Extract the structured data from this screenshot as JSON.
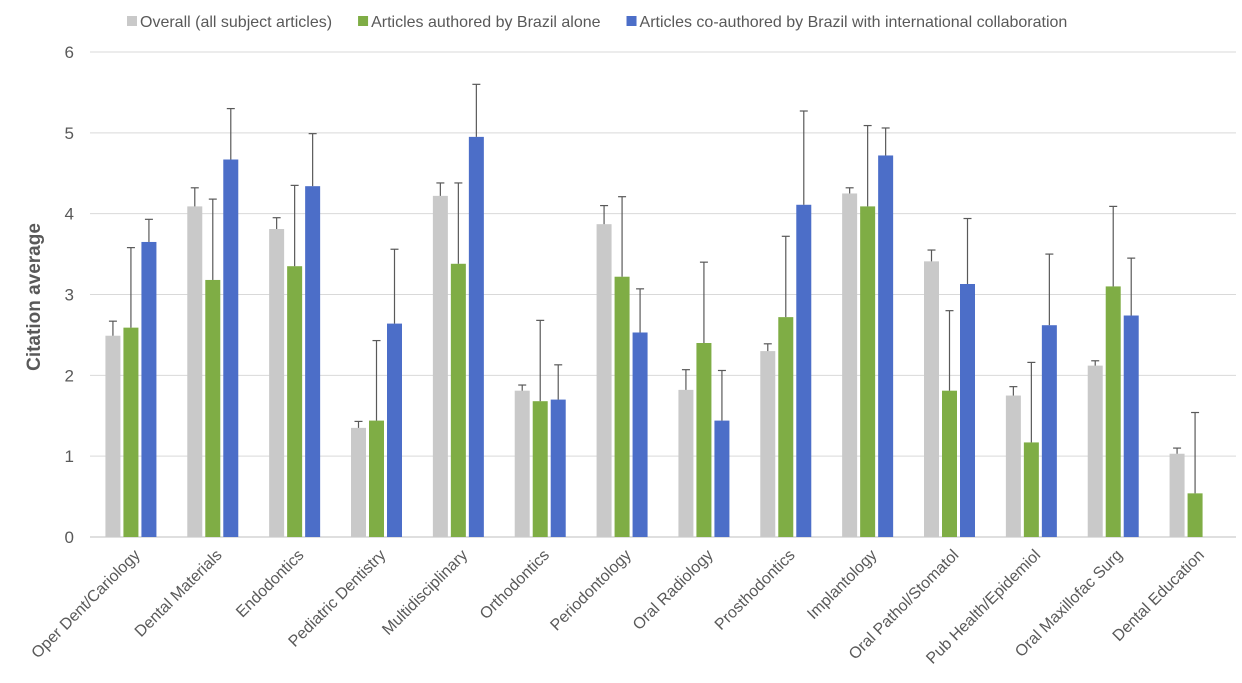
{
  "chart_data": {
    "type": "bar",
    "title": "",
    "xlabel": "",
    "ylabel": "Citation average",
    "ylim": [
      0,
      6
    ],
    "yticks": [
      "0",
      "1",
      "2",
      "3",
      "4",
      "5",
      "6"
    ],
    "grid": true,
    "legend_position": "top",
    "error_bars": true,
    "categories": [
      "Oper Dent/Cariology",
      "Dental Materials",
      "Endodontics",
      "Pediatric Dentistry",
      "Multidisciplinary",
      "Orthodontics",
      "Periodontology",
      "Oral Radiology",
      "Prosthodontics",
      "Implantology",
      "Oral Pathol/Stomatol",
      "Pub Health/Epidemiol",
      "Oral Maxillofac Surg",
      "Dental Education"
    ],
    "series": [
      {
        "name": "Overall (all subject articles)",
        "color": "#c9c9c9",
        "values": [
          2.49,
          4.09,
          3.81,
          1.35,
          4.22,
          1.81,
          3.87,
          1.82,
          2.3,
          4.25,
          3.41,
          1.75,
          2.12,
          1.03
        ],
        "error_upper": [
          2.67,
          4.32,
          3.95,
          1.43,
          4.38,
          1.88,
          4.1,
          2.07,
          2.39,
          4.32,
          3.55,
          1.86,
          2.18,
          1.1
        ]
      },
      {
        "name": "Articles authored by Brazil alone",
        "color": "#7fad45",
        "values": [
          2.59,
          3.18,
          3.35,
          1.44,
          3.38,
          1.68,
          3.22,
          2.4,
          2.72,
          4.09,
          1.81,
          1.17,
          3.1,
          0.54
        ],
        "error_upper": [
          3.58,
          4.18,
          4.35,
          2.43,
          4.38,
          2.68,
          4.21,
          3.4,
          3.72,
          5.09,
          2.8,
          2.16,
          4.09,
          1.54
        ]
      },
      {
        "name": "Articles co-authored by Brazil with international collaboration",
        "color": "#4c6ec8",
        "values": [
          3.65,
          4.67,
          4.34,
          2.64,
          4.95,
          1.7,
          2.53,
          1.44,
          4.11,
          4.72,
          3.13,
          2.62,
          2.74,
          null
        ],
        "error_upper": [
          3.93,
          5.3,
          4.99,
          3.56,
          5.6,
          2.13,
          3.07,
          2.06,
          5.27,
          5.06,
          3.94,
          3.5,
          3.45,
          null
        ]
      }
    ]
  }
}
